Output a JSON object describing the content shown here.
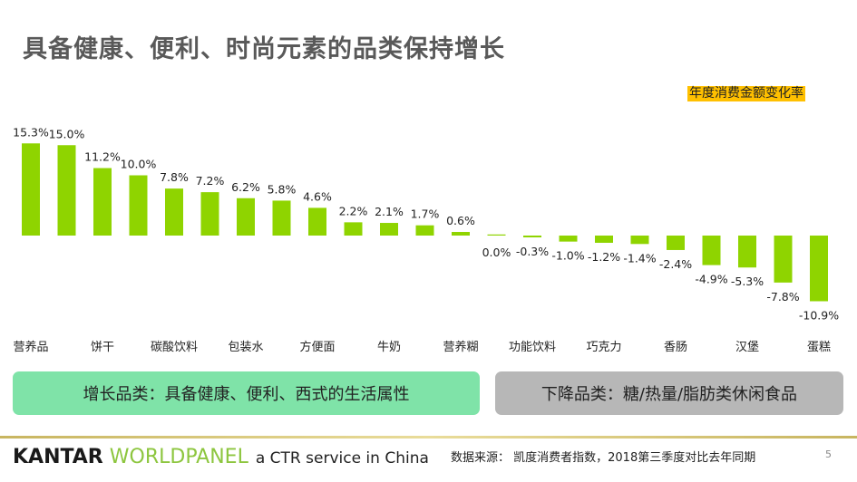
{
  "title": "具备健康、便利、时尚元素的品类保持增长",
  "chart_data": {
    "type": "bar",
    "legend": "年度消费金额变化率",
    "legend_placement": "top-right",
    "categories": [
      "营养品",
      "",
      "饼干",
      "",
      "碳酸饮料",
      "",
      "包装水",
      "",
      "方便面",
      "",
      "牛奶",
      "",
      "营养糊",
      "",
      "功能饮料",
      "",
      "巧克力",
      "",
      "香肠",
      "",
      "汉堡",
      "",
      "蛋糕"
    ],
    "values": [
      15.3,
      15.0,
      11.2,
      10.0,
      7.8,
      7.2,
      6.2,
      5.8,
      4.6,
      2.2,
      2.1,
      1.7,
      0.6,
      0.0,
      -0.3,
      -1.0,
      -1.2,
      -1.4,
      -2.4,
      -4.9,
      -5.3,
      -7.8,
      -10.9
    ],
    "labels": [
      "15.3%",
      "15.0%",
      "11.2%",
      "10.0%",
      "7.8%",
      "7.2%",
      "6.2%",
      "5.8%",
      "4.6%",
      "2.2%",
      "2.1%",
      "1.7%",
      "0.6%",
      "0.0%",
      "-0.3%",
      "-1.0%",
      "-1.2%",
      "-1.4%",
      "-2.4%",
      "-4.9%",
      "-5.3%",
      "-7.8%",
      "-10.9%"
    ],
    "bar_color": "#8fd400",
    "grid": false
  },
  "boxes": {
    "growth": "增长品类：具备健康、便利、西式的生活属性",
    "decline": "下降品类：糖/热量/脂肪类休闲食品"
  },
  "footer": {
    "logo_kantar": "KANTAR",
    "logo_worldpanel": "WORLDPANEL",
    "logo_tagline": "a CTR service in China",
    "source": "数据来源： 凯度消费者指数，2018第三季度对比去年同期",
    "page": "5"
  }
}
